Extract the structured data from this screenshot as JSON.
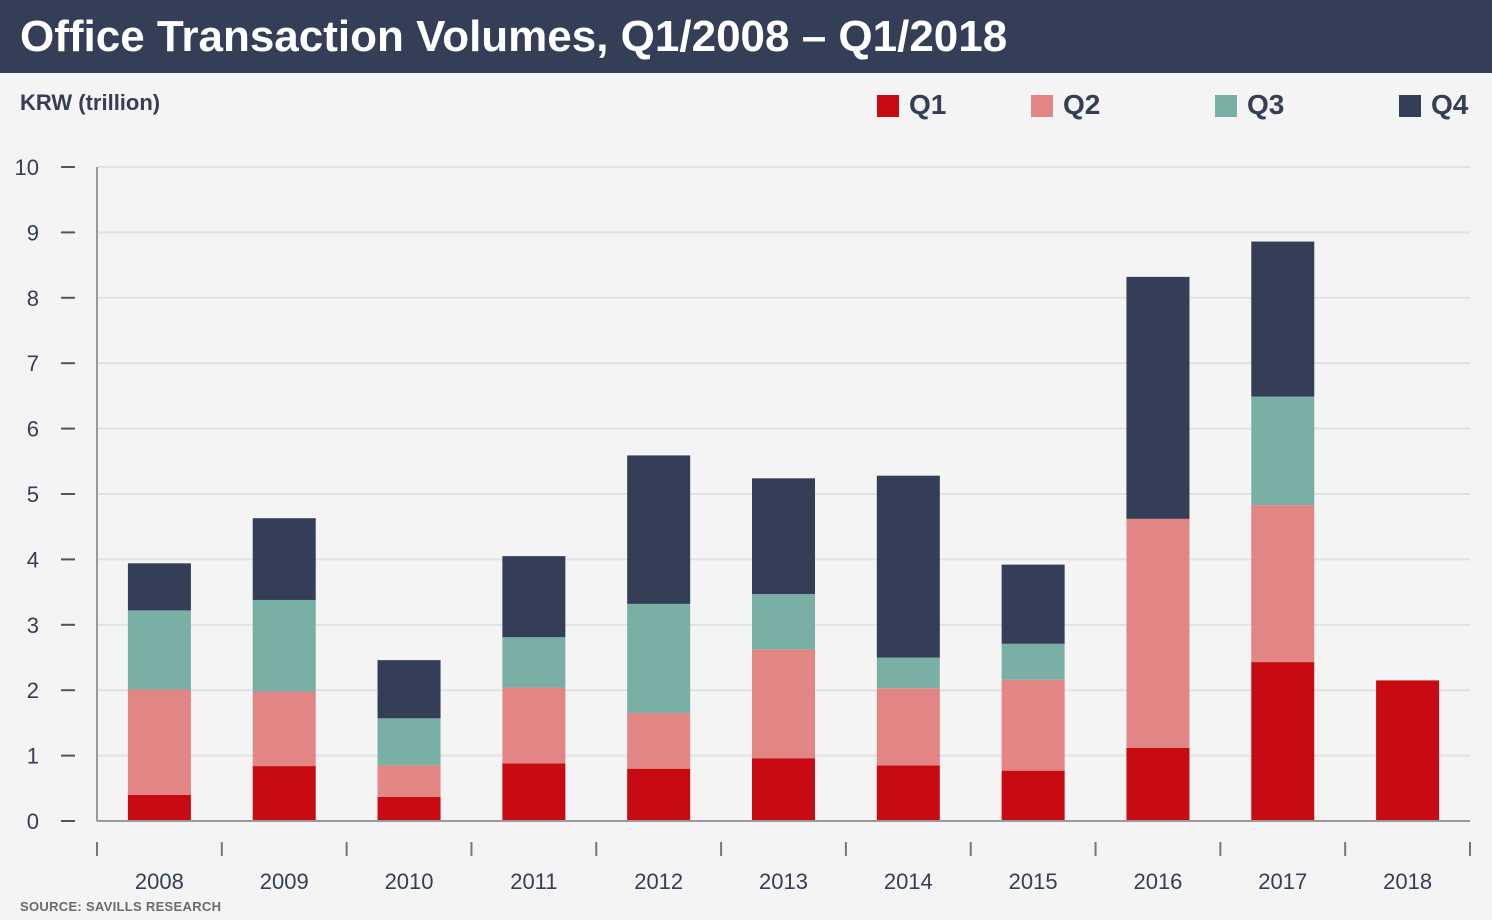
{
  "title": "Office Transaction Volumes, Q1/2008 – Q1/2018",
  "unit_label": "KRW (trillion)",
  "source": "SOURCE: SAVILLS RESEARCH",
  "colors": {
    "Q1": "#c80a12",
    "Q2": "#e18585",
    "Q3": "#7aafa6",
    "Q4": "#343e57",
    "header": "#343e57",
    "grid": "#e2e2e2",
    "axis": "#999999"
  },
  "legend": [
    {
      "label": "Q1",
      "color": "#c80a12"
    },
    {
      "label": "Q2",
      "color": "#e18585"
    },
    {
      "label": "Q3",
      "color": "#7aafa6"
    },
    {
      "label": "Q4",
      "color": "#343e57"
    }
  ],
  "chart_data": {
    "type": "bar",
    "stacked": true,
    "categories": [
      "2008",
      "2009",
      "2010",
      "2011",
      "2012",
      "2013",
      "2014",
      "2015",
      "2016",
      "2017",
      "2018"
    ],
    "series": [
      {
        "name": "Q1",
        "values": [
          0.4,
          0.84,
          0.37,
          0.88,
          0.8,
          0.96,
          0.85,
          0.77,
          1.12,
          2.43,
          2.15
        ]
      },
      {
        "name": "Q2",
        "values": [
          1.61,
          1.14,
          0.48,
          1.16,
          0.85,
          1.66,
          1.18,
          1.39,
          3.5,
          2.4,
          0
        ]
      },
      {
        "name": "Q3",
        "values": [
          1.21,
          1.4,
          0.72,
          0.77,
          1.67,
          0.85,
          0.47,
          0.55,
          0,
          1.66,
          0
        ]
      },
      {
        "name": "Q4",
        "values": [
          0.72,
          1.25,
          0.89,
          1.24,
          2.27,
          1.77,
          2.78,
          1.21,
          3.7,
          2.37,
          0
        ]
      }
    ],
    "yticks": [
      0,
      1,
      2,
      3,
      4,
      5,
      6,
      7,
      8,
      9,
      10
    ],
    "ylim": [
      0,
      10
    ],
    "ylabel": "KRW (trillion)",
    "xlabel": "",
    "grid": true,
    "legend_position": "top-right"
  }
}
